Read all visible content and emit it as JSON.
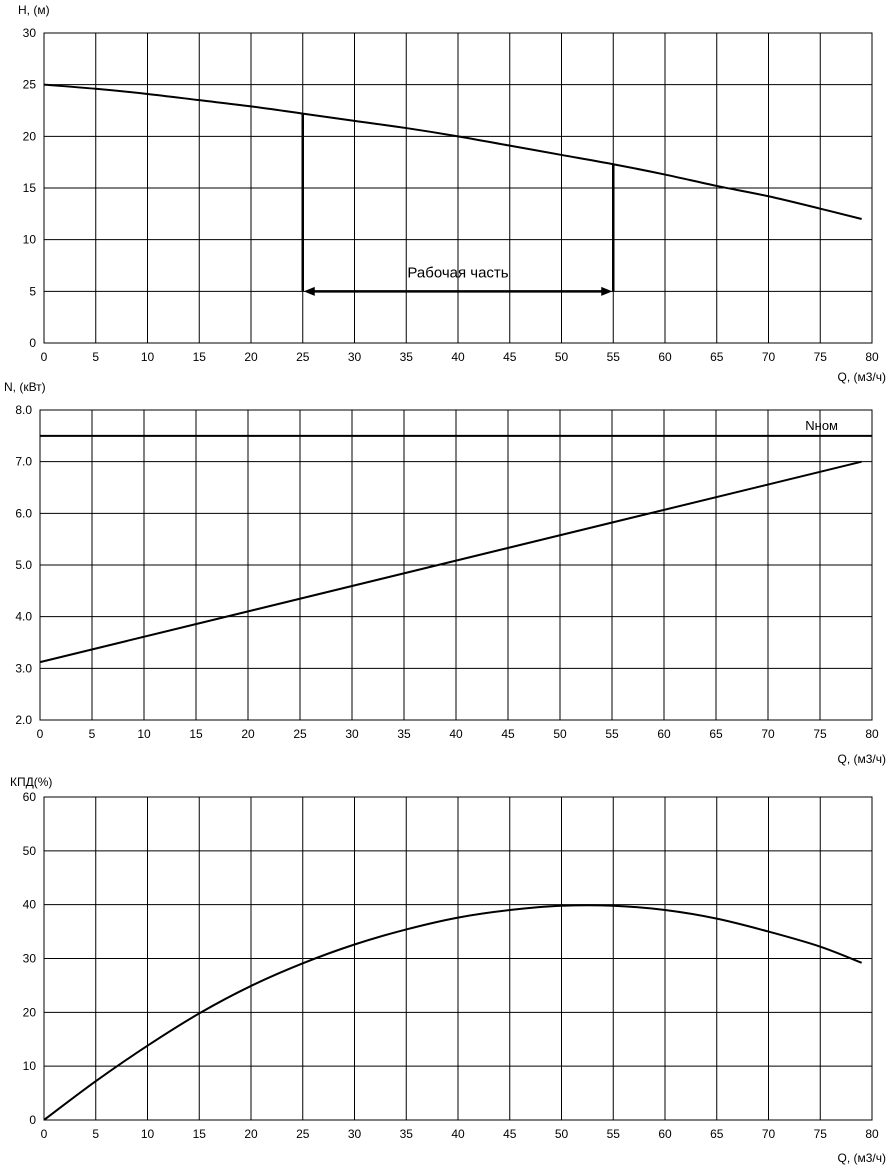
{
  "chart_data": [
    {
      "id": "head",
      "type": "line",
      "ylabel": "H, (м)",
      "xlabel": "Q, (м3/ч)",
      "xlim": [
        0,
        80
      ],
      "ylim": [
        0,
        30
      ],
      "xticks": [
        0,
        5,
        10,
        15,
        20,
        25,
        30,
        35,
        40,
        45,
        50,
        55,
        60,
        65,
        70,
        75,
        80
      ],
      "yticks": [
        0,
        5,
        10,
        15,
        20,
        25,
        30
      ],
      "ytick_labels": [
        "0",
        "5",
        "10",
        "15",
        "20",
        "25",
        "30"
      ],
      "grid": true,
      "series": [
        {
          "x": [
            0,
            5,
            10,
            15,
            20,
            25,
            30,
            35,
            40,
            45,
            50,
            55,
            60,
            65,
            70,
            75,
            79
          ],
          "y": [
            25,
            24.6,
            24.1,
            23.5,
            22.9,
            22.2,
            21.5,
            20.8,
            20.0,
            19.1,
            18.2,
            17.3,
            16.3,
            15.2,
            14.2,
            13.0,
            12.0
          ]
        }
      ],
      "annotation": {
        "text": "Рабочая часть",
        "x_from": 25,
        "x_to": 55,
        "y": 5,
        "y_top_left": 22.2,
        "y_top_right": 17.3
      }
    },
    {
      "id": "power",
      "type": "line",
      "ylabel": "N, (кВт)",
      "xlabel": "Q, (м3/ч)",
      "xlim": [
        0,
        80
      ],
      "ylim": [
        2,
        8
      ],
      "xticks": [
        0,
        5,
        10,
        15,
        20,
        25,
        30,
        35,
        40,
        45,
        50,
        55,
        60,
        65,
        70,
        75,
        80
      ],
      "yticks": [
        2,
        3,
        4,
        5,
        6,
        7,
        8
      ],
      "ytick_labels": [
        "2.0",
        "3.0",
        "4.0",
        "5.0",
        "6.0",
        "7.0",
        "8.0"
      ],
      "grid": true,
      "series": [
        {
          "x": [
            0,
            79
          ],
          "y": [
            3.12,
            7.0
          ]
        }
      ],
      "reference_line": {
        "label": "Nном",
        "y": 7.5
      }
    },
    {
      "id": "efficiency",
      "type": "line",
      "ylabel": "КПД(%)",
      "xlabel": "Q, (м3/ч)",
      "xlim": [
        0,
        80
      ],
      "ylim": [
        0,
        60
      ],
      "xticks": [
        0,
        5,
        10,
        15,
        20,
        25,
        30,
        35,
        40,
        45,
        50,
        55,
        60,
        65,
        70,
        75,
        80
      ],
      "yticks": [
        0,
        10,
        20,
        30,
        40,
        50,
        60
      ],
      "ytick_labels": [
        "0",
        "10",
        "20",
        "30",
        "40",
        "50",
        "60"
      ],
      "grid": true,
      "series": [
        {
          "x": [
            0,
            5,
            10,
            15,
            20,
            25,
            30,
            35,
            40,
            45,
            50,
            55,
            60,
            65,
            70,
            75,
            79
          ],
          "y": [
            0,
            7.2,
            13.8,
            19.8,
            24.9,
            29.1,
            32.6,
            35.4,
            37.6,
            39.0,
            39.8,
            39.8,
            39.0,
            37.4,
            35.0,
            32.2,
            29.2
          ]
        }
      ]
    }
  ]
}
